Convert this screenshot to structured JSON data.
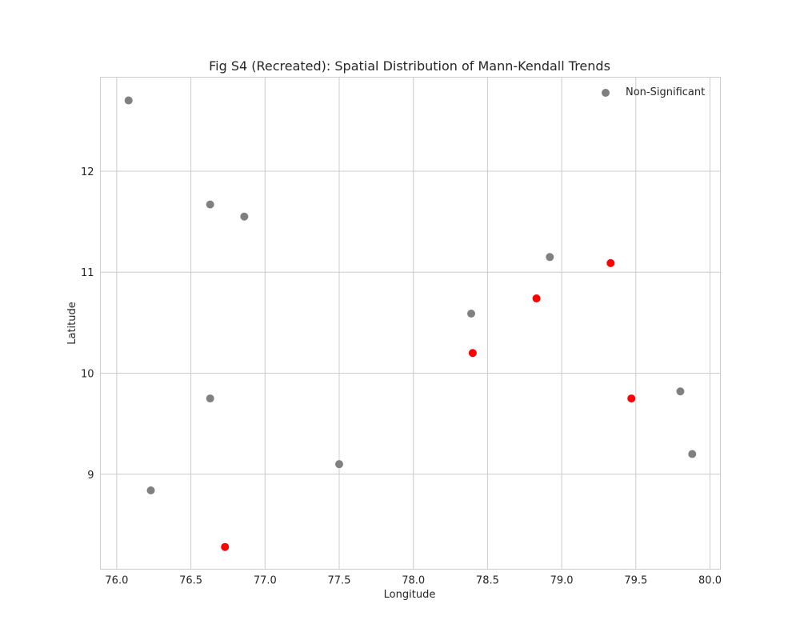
{
  "chart_data": {
    "type": "scatter",
    "title": "Fig S4 (Recreated): Spatial Distribution of Mann-Kendall Trends",
    "xlabel": "Longitude",
    "ylabel": "Latitude",
    "xlim": [
      75.89,
      80.07
    ],
    "ylim": [
      8.06,
      12.93
    ],
    "xticks": [
      76.0,
      76.5,
      77.0,
      77.5,
      78.0,
      78.5,
      79.0,
      79.5,
      80.0
    ],
    "xtick_labels": [
      "76.0",
      "76.5",
      "77.0",
      "77.5",
      "78.0",
      "78.5",
      "79.0",
      "79.5",
      "80.0"
    ],
    "yticks": [
      9,
      10,
      11,
      12
    ],
    "ytick_labels": [
      "9",
      "10",
      "11",
      "12"
    ],
    "grid": true,
    "legend_position": "top-right",
    "series": [
      {
        "name": "Non-Significant",
        "color": "#808080",
        "in_legend": true,
        "points": [
          {
            "x": 76.08,
            "y": 12.7
          },
          {
            "x": 76.63,
            "y": 11.67
          },
          {
            "x": 76.86,
            "y": 11.55
          },
          {
            "x": 78.92,
            "y": 11.15
          },
          {
            "x": 78.39,
            "y": 10.59
          },
          {
            "x": 76.63,
            "y": 9.75
          },
          {
            "x": 79.8,
            "y": 9.82
          },
          {
            "x": 79.88,
            "y": 9.2
          },
          {
            "x": 77.5,
            "y": 9.1
          },
          {
            "x": 76.23,
            "y": 8.84
          }
        ]
      },
      {
        "name": "",
        "color": "#ff0000",
        "in_legend": false,
        "points": [
          {
            "x": 79.33,
            "y": 11.09
          },
          {
            "x": 78.83,
            "y": 10.74
          },
          {
            "x": 78.4,
            "y": 10.2
          },
          {
            "x": 79.47,
            "y": 9.75
          },
          {
            "x": 76.73,
            "y": 8.28
          }
        ]
      }
    ]
  }
}
